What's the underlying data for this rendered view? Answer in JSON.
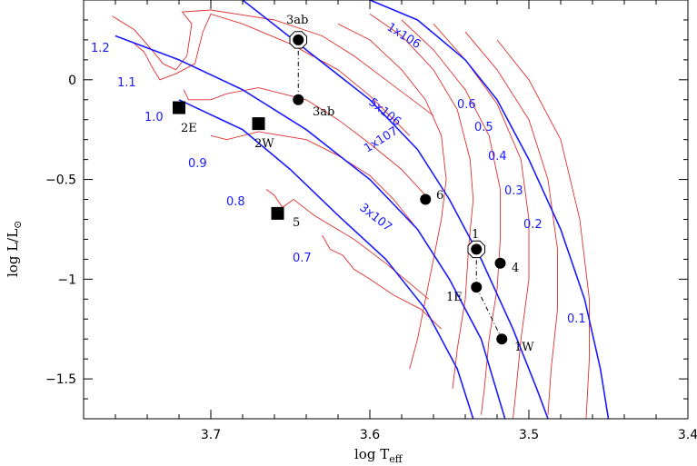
{
  "chart_data": {
    "type": "scatter",
    "xlabel": "log  T",
    "xlabel_sub": "eff",
    "ylabel": "log  L/L",
    "ylabel_sub": "⊙",
    "xlim": [
      3.78,
      3.4
    ],
    "ylim": [
      -1.7,
      0.4
    ],
    "x_reversed": true,
    "x_ticks": [
      3.7,
      3.6,
      3.5,
      3.4
    ],
    "x_tick_labels": [
      "3.7",
      "3.6",
      "3.5",
      "3.4"
    ],
    "y_ticks": [
      0,
      -0.5,
      -1,
      -1.5
    ],
    "y_tick_labels": [
      "0",
      "−0.5",
      "−1",
      "−1.5"
    ],
    "colors": {
      "tracks": "#e03030",
      "isochrones": "#1a1aff",
      "labels_blue": "#1a1aff"
    },
    "tracks": [
      {
        "mass": "1.2",
        "points": [
          [
            3.762,
            0.32
          ],
          [
            3.748,
            0.25
          ],
          [
            3.735,
            0.13
          ],
          [
            3.73,
            0.08
          ],
          [
            3.722,
            0.05
          ],
          [
            3.715,
            0.12
          ],
          [
            3.712,
            0.28
          ],
          [
            3.718,
            0.34
          ],
          [
            3.7,
            0.35
          ],
          [
            3.66,
            0.3
          ],
          [
            3.63,
            0.22
          ],
          [
            3.61,
            0.12
          ],
          [
            3.59,
            0.0
          ],
          [
            3.56,
            -0.18
          ]
        ]
      },
      {
        "mass": "1.1",
        "points": [
          [
            3.748,
            0.18
          ],
          [
            3.742,
            0.14
          ],
          [
            3.736,
            0.05
          ],
          [
            3.732,
            0.0
          ],
          [
            3.722,
            0.03
          ],
          [
            3.71,
            0.08
          ],
          [
            3.705,
            0.24
          ],
          [
            3.7,
            0.33
          ],
          [
            3.68,
            0.28
          ],
          [
            3.65,
            0.18
          ],
          [
            3.62,
            0.05
          ],
          [
            3.6,
            -0.08
          ],
          [
            3.575,
            -0.28
          ]
        ]
      },
      {
        "mass": "1.0",
        "points": [
          [
            3.717,
            -0.05
          ],
          [
            3.714,
            -0.1
          ],
          [
            3.7,
            -0.1
          ],
          [
            3.69,
            -0.07
          ],
          [
            3.67,
            -0.04
          ],
          [
            3.64,
            -0.1
          ],
          [
            3.62,
            -0.2
          ],
          [
            3.6,
            -0.32
          ],
          [
            3.58,
            -0.45
          ],
          [
            3.565,
            -0.58
          ]
        ]
      },
      {
        "mass": "0.9",
        "points": [
          [
            3.7,
            -0.28
          ],
          [
            3.69,
            -0.3
          ],
          [
            3.67,
            -0.26
          ],
          [
            3.64,
            -0.3
          ],
          [
            3.62,
            -0.38
          ],
          [
            3.6,
            -0.48
          ],
          [
            3.585,
            -0.6
          ],
          [
            3.57,
            -0.75
          ]
        ]
      },
      {
        "mass": "0.8",
        "points": [
          [
            3.665,
            -0.55
          ],
          [
            3.66,
            -0.58
          ],
          [
            3.655,
            -0.64
          ],
          [
            3.648,
            -0.6
          ],
          [
            3.635,
            -0.68
          ],
          [
            3.61,
            -0.8
          ],
          [
            3.59,
            -0.92
          ],
          [
            3.575,
            -1.02
          ],
          [
            3.563,
            -1.1
          ]
        ]
      },
      {
        "mass": "0.7",
        "points": [
          [
            3.63,
            -0.78
          ],
          [
            3.625,
            -0.85
          ],
          [
            3.617,
            -0.88
          ],
          [
            3.61,
            -0.95
          ],
          [
            3.6,
            -1.0
          ],
          [
            3.585,
            -1.08
          ],
          [
            3.568,
            -1.15
          ],
          [
            3.555,
            -1.25
          ]
        ]
      },
      {
        "mass": "0.6",
        "points": [
          [
            3.62,
            0.28
          ],
          [
            3.6,
            0.2
          ],
          [
            3.58,
            0.05
          ],
          [
            3.565,
            -0.1
          ],
          [
            3.555,
            -0.28
          ],
          [
            3.552,
            -0.5
          ],
          [
            3.555,
            -0.7
          ],
          [
            3.56,
            -0.9
          ],
          [
            3.565,
            -1.1
          ],
          [
            3.57,
            -1.3
          ],
          [
            3.575,
            -1.45
          ]
        ]
      },
      {
        "mass": "0.5",
        "points": [
          [
            3.6,
            0.33
          ],
          [
            3.58,
            0.22
          ],
          [
            3.56,
            0.05
          ],
          [
            3.545,
            -0.15
          ],
          [
            3.537,
            -0.4
          ],
          [
            3.535,
            -0.6
          ],
          [
            3.538,
            -0.85
          ],
          [
            3.54,
            -1.1
          ],
          [
            3.545,
            -1.35
          ],
          [
            3.548,
            -1.55
          ]
        ]
      },
      {
        "mass": "0.4",
        "points": [
          [
            3.58,
            0.3
          ],
          [
            3.56,
            0.15
          ],
          [
            3.54,
            -0.05
          ],
          [
            3.525,
            -0.28
          ],
          [
            3.518,
            -0.55
          ],
          [
            3.518,
            -0.8
          ],
          [
            3.52,
            -1.05
          ],
          [
            3.525,
            -1.3
          ],
          [
            3.528,
            -1.55
          ],
          [
            3.53,
            -1.68
          ]
        ]
      },
      {
        "mass": "0.3",
        "points": [
          [
            3.56,
            0.28
          ],
          [
            3.54,
            0.1
          ],
          [
            3.52,
            -0.12
          ],
          [
            3.505,
            -0.4
          ],
          [
            3.5,
            -0.7
          ],
          [
            3.5,
            -1.0
          ],
          [
            3.505,
            -1.3
          ],
          [
            3.508,
            -1.55
          ],
          [
            3.51,
            -1.7
          ]
        ]
      },
      {
        "mass": "0.2",
        "points": [
          [
            3.54,
            0.24
          ],
          [
            3.52,
            0.05
          ],
          [
            3.5,
            -0.2
          ],
          [
            3.488,
            -0.5
          ],
          [
            3.482,
            -0.85
          ],
          [
            3.482,
            -1.15
          ],
          [
            3.486,
            -1.45
          ],
          [
            3.488,
            -1.68
          ]
        ]
      },
      {
        "mass": "0.1",
        "points": [
          [
            3.52,
            0.2
          ],
          [
            3.5,
            0.0
          ],
          [
            3.48,
            -0.3
          ],
          [
            3.468,
            -0.7
          ],
          [
            3.462,
            -1.1
          ],
          [
            3.462,
            -1.4
          ],
          [
            3.464,
            -1.7
          ]
        ]
      }
    ],
    "isochrones": [
      {
        "label": "1x10⁶",
        "points": [
          [
            3.6,
            0.4
          ],
          [
            3.57,
            0.3
          ],
          [
            3.54,
            0.1
          ],
          [
            3.52,
            -0.1
          ],
          [
            3.5,
            -0.4
          ],
          [
            3.48,
            -0.75
          ],
          [
            3.465,
            -1.1
          ],
          [
            3.455,
            -1.45
          ],
          [
            3.45,
            -1.7
          ]
        ]
      },
      {
        "label": "5x10⁶",
        "points": [
          [
            3.68,
            0.4
          ],
          [
            3.64,
            0.15
          ],
          [
            3.6,
            -0.1
          ],
          [
            3.57,
            -0.35
          ],
          [
            3.55,
            -0.6
          ],
          [
            3.53,
            -0.9
          ],
          [
            3.51,
            -1.25
          ],
          [
            3.495,
            -1.55
          ],
          [
            3.488,
            -1.7
          ]
        ]
      },
      {
        "label": "1x10⁷",
        "points": [
          [
            3.76,
            0.22
          ],
          [
            3.72,
            0.1
          ],
          [
            3.68,
            -0.05
          ],
          [
            3.64,
            -0.25
          ],
          [
            3.6,
            -0.5
          ],
          [
            3.57,
            -0.75
          ],
          [
            3.55,
            -1.0
          ],
          [
            3.53,
            -1.3
          ],
          [
            3.515,
            -1.7
          ]
        ]
      },
      {
        "label": "3x10⁷",
        "points": [
          [
            3.72,
            -0.1
          ],
          [
            3.68,
            -0.25
          ],
          [
            3.65,
            -0.45
          ],
          [
            3.62,
            -0.68
          ],
          [
            3.59,
            -0.9
          ],
          [
            3.565,
            -1.15
          ],
          [
            3.545,
            -1.45
          ],
          [
            3.535,
            -1.7
          ]
        ]
      }
    ],
    "mass_labels": [
      "1.2",
      "1.1",
      "1.0",
      "0.9",
      "0.8",
      "0.7",
      "0.6",
      "0.5",
      "0.4",
      "0.3",
      "0.2",
      "0.1"
    ],
    "isochrone_labels": [
      "1x106",
      "5x106",
      "1x107",
      "3x107"
    ],
    "stars": [
      {
        "label": "3ab",
        "x": 3.645,
        "y": 0.2,
        "marker": "circle-ring"
      },
      {
        "label": "3ab",
        "x": 3.645,
        "y": -0.1,
        "marker": "circle"
      },
      {
        "label": "2E",
        "x": 3.72,
        "y": -0.14,
        "marker": "square"
      },
      {
        "label": "2W",
        "x": 3.67,
        "y": -0.22,
        "marker": "square"
      },
      {
        "label": "5",
        "x": 3.658,
        "y": -0.67,
        "marker": "square"
      },
      {
        "label": "6",
        "x": 3.565,
        "y": -0.6,
        "marker": "circle"
      },
      {
        "label": "1",
        "x": 3.533,
        "y": -0.85,
        "marker": "circle-ring"
      },
      {
        "label": "4",
        "x": 3.518,
        "y": -0.92,
        "marker": "circle"
      },
      {
        "label": "1E",
        "x": 3.533,
        "y": -1.04,
        "marker": "circle"
      },
      {
        "label": "1W",
        "x": 3.517,
        "y": -1.3,
        "marker": "circle"
      }
    ]
  }
}
